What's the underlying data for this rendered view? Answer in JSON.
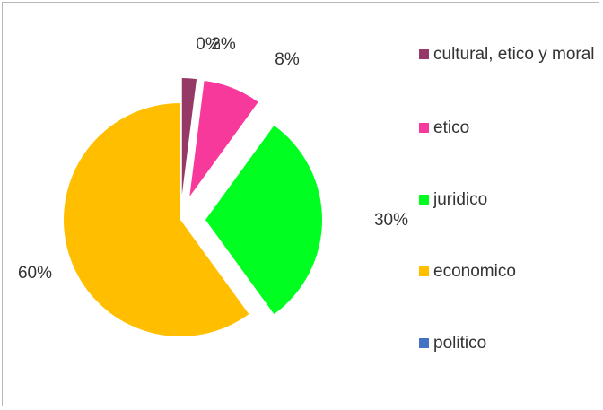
{
  "chart_data": {
    "type": "pie",
    "exploded": true,
    "slices": [
      {
        "label": "cultural, etico y moral",
        "value": 2,
        "data_label": "2%",
        "color": "#953a67"
      },
      {
        "label": "etico",
        "value": 8,
        "data_label": "8%",
        "color": "#f7399c"
      },
      {
        "label": "juridico",
        "value": 30,
        "data_label": "30%",
        "color": "#00ff21"
      },
      {
        "label": "economico",
        "value": 60,
        "data_label": "60%",
        "color": "#ffbf00"
      },
      {
        "label": "politico",
        "value": 0,
        "data_label": "0%",
        "color": "#4472c4"
      }
    ],
    "legend_position": "right"
  }
}
